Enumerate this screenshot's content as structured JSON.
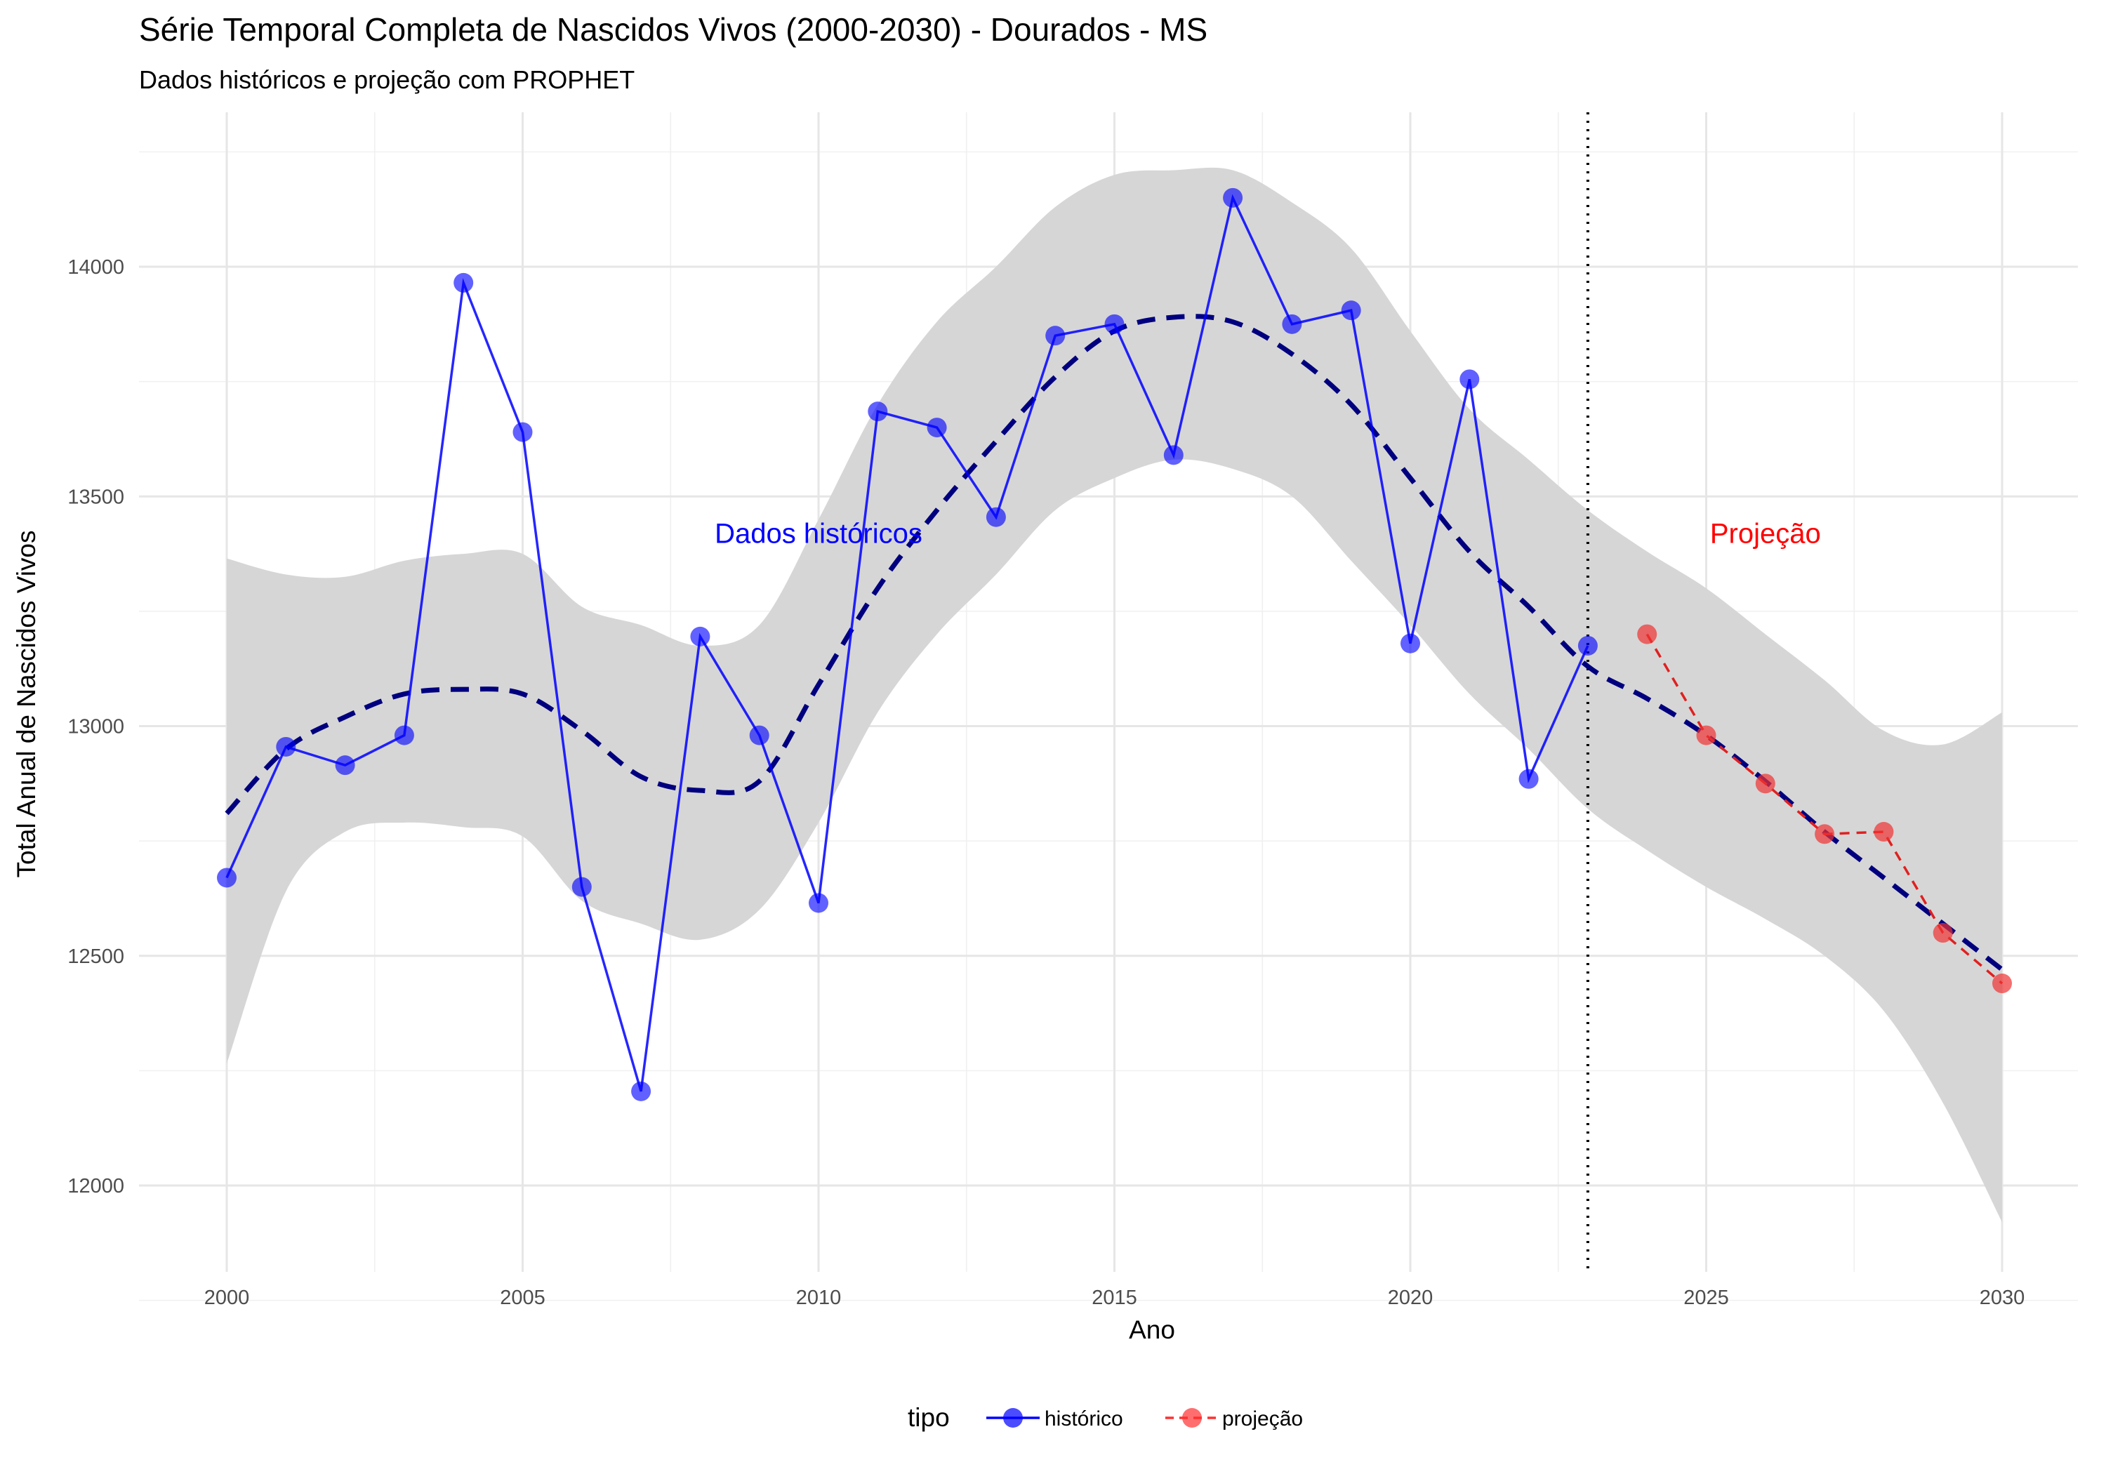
{
  "chart_data": {
    "type": "line",
    "title": "Série Temporal Completa de Nascidos Vivos (2000-2030) -  Dourados - MS",
    "subtitle": "Dados históricos e projeção com PROPHET",
    "xlabel": "Ano",
    "ylabel": "Total Anual de Nascidos Vivos",
    "xlim": [
      1998.5,
      2031.3
    ],
    "ylim": [
      11810,
      14360
    ],
    "x_ticks": [
      2000,
      2005,
      2010,
      2015,
      2020,
      2025,
      2030
    ],
    "y_ticks": [
      12000,
      12500,
      13000,
      13500,
      14000
    ],
    "grid": true,
    "legend": {
      "title": "tipo",
      "position": "bottom",
      "entries": [
        {
          "label": "histórico",
          "color": "#0000ff"
        },
        {
          "label": "projeção",
          "color": "#ff3030"
        }
      ]
    },
    "series": [
      {
        "name": "histórico",
        "color": "#0000ff",
        "x": [
          2000,
          2001,
          2002,
          2003,
          2004,
          2005,
          2006,
          2007,
          2008,
          2009,
          2010,
          2011,
          2012,
          2013,
          2014,
          2015,
          2016,
          2017,
          2018,
          2019,
          2020,
          2021,
          2022,
          2023
        ],
        "y": [
          12670,
          12955,
          12915,
          12980,
          13965,
          13640,
          12650,
          12205,
          13195,
          12980,
          12615,
          13685,
          13650,
          13455,
          13850,
          13875,
          13590,
          14150,
          13875,
          13905,
          13180,
          13755,
          12885,
          13175
        ]
      },
      {
        "name": "projeção",
        "color": "#ff3030",
        "x": [
          2024,
          2025,
          2026,
          2027,
          2028,
          2029,
          2030
        ],
        "y": [
          13200,
          12980,
          12875,
          12765,
          12770,
          12550,
          12440
        ]
      }
    ],
    "trend": {
      "color": "#00007f",
      "x": [
        2000,
        2001,
        2002,
        2003,
        2004,
        2005,
        2006,
        2007,
        2008,
        2009,
        2010,
        2011,
        2012,
        2013,
        2014,
        2015,
        2016,
        2017,
        2018,
        2019,
        2020,
        2021,
        2022,
        2023,
        2024,
        2025,
        2026,
        2027,
        2028,
        2029,
        2030
      ],
      "y": [
        12810,
        12950,
        13020,
        13070,
        13080,
        13070,
        12990,
        12890,
        12860,
        12880,
        13090,
        13300,
        13470,
        13620,
        13760,
        13860,
        13890,
        13880,
        13810,
        13700,
        13540,
        13380,
        13260,
        13130,
        13060,
        12980,
        12880,
        12770,
        12670,
        12570,
        12470
      ]
    },
    "interval": {
      "color": "#d6d6d6",
      "x": [
        2000,
        2001,
        2002,
        2003,
        2004,
        2005,
        2006,
        2007,
        2008,
        2009,
        2010,
        2011,
        2012,
        2013,
        2014,
        2015,
        2016,
        2017,
        2018,
        2019,
        2020,
        2021,
        2022,
        2023,
        2024,
        2025,
        2026,
        2027,
        2028,
        2029,
        2030
      ],
      "lower": [
        12265,
        12640,
        12770,
        12790,
        12780,
        12760,
        12620,
        12570,
        12535,
        12600,
        12790,
        13030,
        13200,
        13330,
        13470,
        13540,
        13580,
        13560,
        13500,
        13360,
        13220,
        13070,
        12950,
        12820,
        12730,
        12650,
        12580,
        12500,
        12380,
        12180,
        11920
      ],
      "upper": [
        13365,
        13330,
        13325,
        13360,
        13375,
        13375,
        13260,
        13220,
        13175,
        13220,
        13450,
        13700,
        13880,
        14000,
        14130,
        14200,
        14210,
        14210,
        14140,
        14040,
        13860,
        13690,
        13580,
        13470,
        13380,
        13300,
        13200,
        13100,
        12990,
        12960,
        13030
      ]
    },
    "vline": {
      "x": 2023,
      "style": "dotted",
      "color": "#000000"
    },
    "annotations": [
      {
        "text": "Dados históricos",
        "x": 2010,
        "y": 13420,
        "color": "#0000ff"
      },
      {
        "text": "Projeção",
        "x": 2026,
        "y": 13420,
        "color": "#ff0000"
      }
    ]
  }
}
